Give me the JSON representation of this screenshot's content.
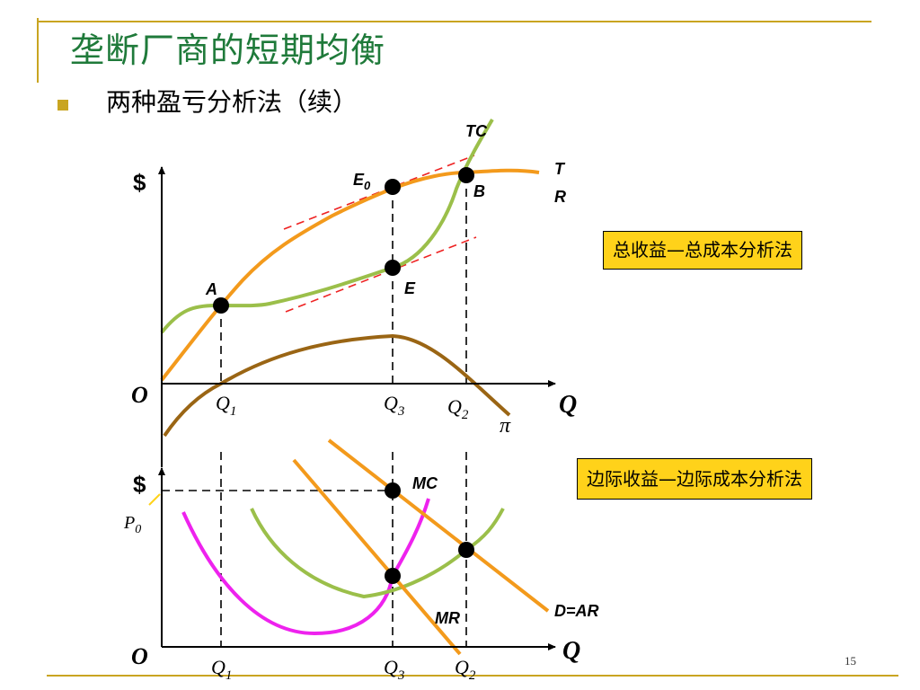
{
  "slide": {
    "title": "垄断厂商的短期均衡",
    "bullet": "两种盈亏分析法（续）",
    "page_number": "15",
    "colors": {
      "title": "#1f7a3a",
      "accent_line": "#c9a521",
      "callout_bg": "#ffd21a",
      "curve_tr": "#f39a1c",
      "curve_tc": "#9bbf4a",
      "curve_profit": "#9a6514",
      "curve_mc": "#ee22ee",
      "tangent": "#ee2222"
    }
  },
  "callouts": {
    "top": "总收益—总成本分析法",
    "bottom": "边际收益—边际成本分析法"
  },
  "top_panel": {
    "y_axis_label": "$",
    "origin": "O",
    "x_axis_label": "Q",
    "x_ticks": {
      "q1": "Q",
      "q1_sub": "1",
      "q3": "Q",
      "q3_sub": "3",
      "q2": "Q",
      "q2_sub": "2"
    },
    "curve_labels": {
      "tc": "TC",
      "tr_line1": "T",
      "tr_line2": "R",
      "profit": "π"
    },
    "points": {
      "a": "A",
      "b": "B",
      "e": "E",
      "e0": "E",
      "e0_sub": "0"
    }
  },
  "bottom_panel": {
    "y_axis_label": "$",
    "origin": "O",
    "x_axis_label": "Q",
    "price_label": "P",
    "price_sub": "0",
    "x_ticks": {
      "q1": "Q",
      "q1_sub": "1",
      "q3": "Q",
      "q3_sub": "3",
      "q2": "Q",
      "q2_sub": "2"
    },
    "curve_labels": {
      "mc": "MC",
      "mr": "MR",
      "demand": "D=AR"
    }
  }
}
